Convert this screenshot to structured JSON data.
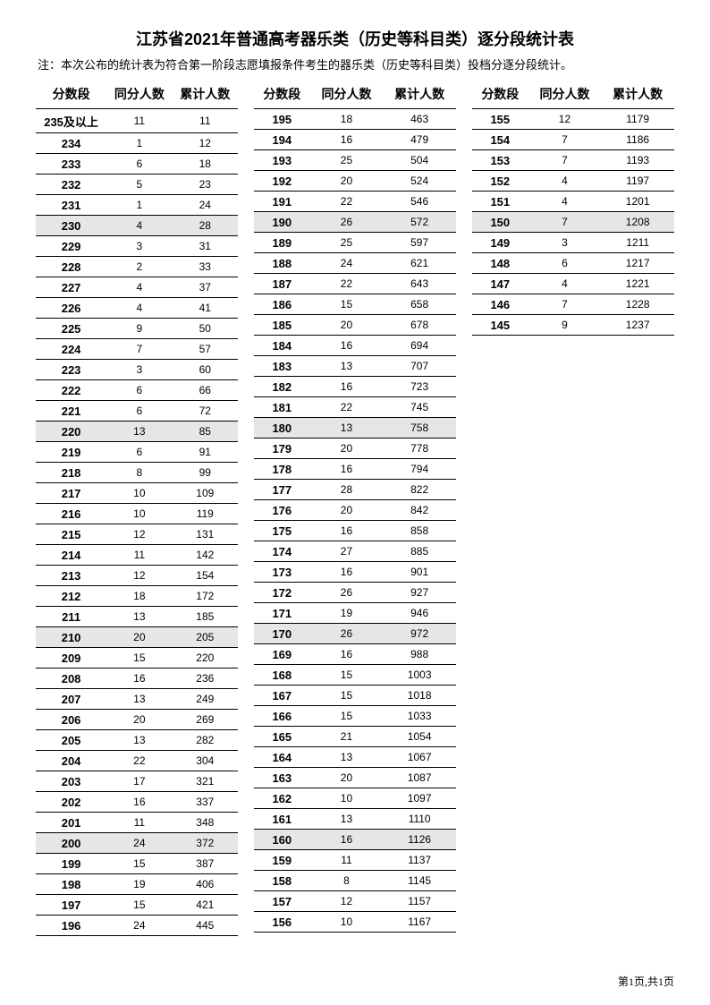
{
  "title": "江苏省2021年普通高考器乐类（历史等科目类）逐分段统计表",
  "note": "注：本次公布的统计表为符合第一阶段志愿填报条件考生的器乐类（历史等科目类）投档分逐分段统计。",
  "headers": {
    "score": "分数段",
    "same": "同分人数",
    "cum": "累计人数"
  },
  "footer": "第1页,共1页",
  "style": {
    "page_bg": "#ffffff",
    "text_color": "#000000",
    "highlight_bg": "#e6e6e6",
    "border_color": "#000000",
    "title_fontsize": 18,
    "header_fontsize": 14,
    "cell_fontsize": 12,
    "score_fontsize": 13,
    "highlight_every": 10,
    "highlight_offset": 0
  },
  "columns": [
    [
      {
        "score": "235及以上",
        "same": 11,
        "cum": 11
      },
      {
        "score": "234",
        "same": 1,
        "cum": 12
      },
      {
        "score": "233",
        "same": 6,
        "cum": 18
      },
      {
        "score": "232",
        "same": 5,
        "cum": 23
      },
      {
        "score": "231",
        "same": 1,
        "cum": 24
      },
      {
        "score": "230",
        "same": 4,
        "cum": 28,
        "hl": true
      },
      {
        "score": "229",
        "same": 3,
        "cum": 31
      },
      {
        "score": "228",
        "same": 2,
        "cum": 33
      },
      {
        "score": "227",
        "same": 4,
        "cum": 37
      },
      {
        "score": "226",
        "same": 4,
        "cum": 41
      },
      {
        "score": "225",
        "same": 9,
        "cum": 50
      },
      {
        "score": "224",
        "same": 7,
        "cum": 57
      },
      {
        "score": "223",
        "same": 3,
        "cum": 60
      },
      {
        "score": "222",
        "same": 6,
        "cum": 66
      },
      {
        "score": "221",
        "same": 6,
        "cum": 72
      },
      {
        "score": "220",
        "same": 13,
        "cum": 85,
        "hl": true
      },
      {
        "score": "219",
        "same": 6,
        "cum": 91
      },
      {
        "score": "218",
        "same": 8,
        "cum": 99
      },
      {
        "score": "217",
        "same": 10,
        "cum": 109
      },
      {
        "score": "216",
        "same": 10,
        "cum": 119
      },
      {
        "score": "215",
        "same": 12,
        "cum": 131
      },
      {
        "score": "214",
        "same": 11,
        "cum": 142
      },
      {
        "score": "213",
        "same": 12,
        "cum": 154
      },
      {
        "score": "212",
        "same": 18,
        "cum": 172
      },
      {
        "score": "211",
        "same": 13,
        "cum": 185
      },
      {
        "score": "210",
        "same": 20,
        "cum": 205,
        "hl": true
      },
      {
        "score": "209",
        "same": 15,
        "cum": 220
      },
      {
        "score": "208",
        "same": 16,
        "cum": 236
      },
      {
        "score": "207",
        "same": 13,
        "cum": 249
      },
      {
        "score": "206",
        "same": 20,
        "cum": 269
      },
      {
        "score": "205",
        "same": 13,
        "cum": 282
      },
      {
        "score": "204",
        "same": 22,
        "cum": 304
      },
      {
        "score": "203",
        "same": 17,
        "cum": 321
      },
      {
        "score": "202",
        "same": 16,
        "cum": 337
      },
      {
        "score": "201",
        "same": 11,
        "cum": 348
      },
      {
        "score": "200",
        "same": 24,
        "cum": 372,
        "hl": true
      },
      {
        "score": "199",
        "same": 15,
        "cum": 387
      },
      {
        "score": "198",
        "same": 19,
        "cum": 406
      },
      {
        "score": "197",
        "same": 15,
        "cum": 421
      },
      {
        "score": "196",
        "same": 24,
        "cum": 445
      }
    ],
    [
      {
        "score": "195",
        "same": 18,
        "cum": 463
      },
      {
        "score": "194",
        "same": 16,
        "cum": 479
      },
      {
        "score": "193",
        "same": 25,
        "cum": 504
      },
      {
        "score": "192",
        "same": 20,
        "cum": 524
      },
      {
        "score": "191",
        "same": 22,
        "cum": 546
      },
      {
        "score": "190",
        "same": 26,
        "cum": 572,
        "hl": true
      },
      {
        "score": "189",
        "same": 25,
        "cum": 597
      },
      {
        "score": "188",
        "same": 24,
        "cum": 621
      },
      {
        "score": "187",
        "same": 22,
        "cum": 643
      },
      {
        "score": "186",
        "same": 15,
        "cum": 658
      },
      {
        "score": "185",
        "same": 20,
        "cum": 678
      },
      {
        "score": "184",
        "same": 16,
        "cum": 694
      },
      {
        "score": "183",
        "same": 13,
        "cum": 707
      },
      {
        "score": "182",
        "same": 16,
        "cum": 723
      },
      {
        "score": "181",
        "same": 22,
        "cum": 745
      },
      {
        "score": "180",
        "same": 13,
        "cum": 758,
        "hl": true
      },
      {
        "score": "179",
        "same": 20,
        "cum": 778
      },
      {
        "score": "178",
        "same": 16,
        "cum": 794
      },
      {
        "score": "177",
        "same": 28,
        "cum": 822
      },
      {
        "score": "176",
        "same": 20,
        "cum": 842
      },
      {
        "score": "175",
        "same": 16,
        "cum": 858
      },
      {
        "score": "174",
        "same": 27,
        "cum": 885
      },
      {
        "score": "173",
        "same": 16,
        "cum": 901
      },
      {
        "score": "172",
        "same": 26,
        "cum": 927
      },
      {
        "score": "171",
        "same": 19,
        "cum": 946
      },
      {
        "score": "170",
        "same": 26,
        "cum": 972,
        "hl": true
      },
      {
        "score": "169",
        "same": 16,
        "cum": 988
      },
      {
        "score": "168",
        "same": 15,
        "cum": 1003
      },
      {
        "score": "167",
        "same": 15,
        "cum": 1018
      },
      {
        "score": "166",
        "same": 15,
        "cum": 1033
      },
      {
        "score": "165",
        "same": 21,
        "cum": 1054
      },
      {
        "score": "164",
        "same": 13,
        "cum": 1067
      },
      {
        "score": "163",
        "same": 20,
        "cum": 1087
      },
      {
        "score": "162",
        "same": 10,
        "cum": 1097
      },
      {
        "score": "161",
        "same": 13,
        "cum": 1110
      },
      {
        "score": "160",
        "same": 16,
        "cum": 1126,
        "hl": true
      },
      {
        "score": "159",
        "same": 11,
        "cum": 1137
      },
      {
        "score": "158",
        "same": 8,
        "cum": 1145
      },
      {
        "score": "157",
        "same": 12,
        "cum": 1157
      },
      {
        "score": "156",
        "same": 10,
        "cum": 1167
      }
    ],
    [
      {
        "score": "155",
        "same": 12,
        "cum": 1179
      },
      {
        "score": "154",
        "same": 7,
        "cum": 1186
      },
      {
        "score": "153",
        "same": 7,
        "cum": 1193
      },
      {
        "score": "152",
        "same": 4,
        "cum": 1197
      },
      {
        "score": "151",
        "same": 4,
        "cum": 1201
      },
      {
        "score": "150",
        "same": 7,
        "cum": 1208,
        "hl": true
      },
      {
        "score": "149",
        "same": 3,
        "cum": 1211
      },
      {
        "score": "148",
        "same": 6,
        "cum": 1217
      },
      {
        "score": "147",
        "same": 4,
        "cum": 1221
      },
      {
        "score": "146",
        "same": 7,
        "cum": 1228
      },
      {
        "score": "145",
        "same": 9,
        "cum": 1237
      }
    ]
  ]
}
